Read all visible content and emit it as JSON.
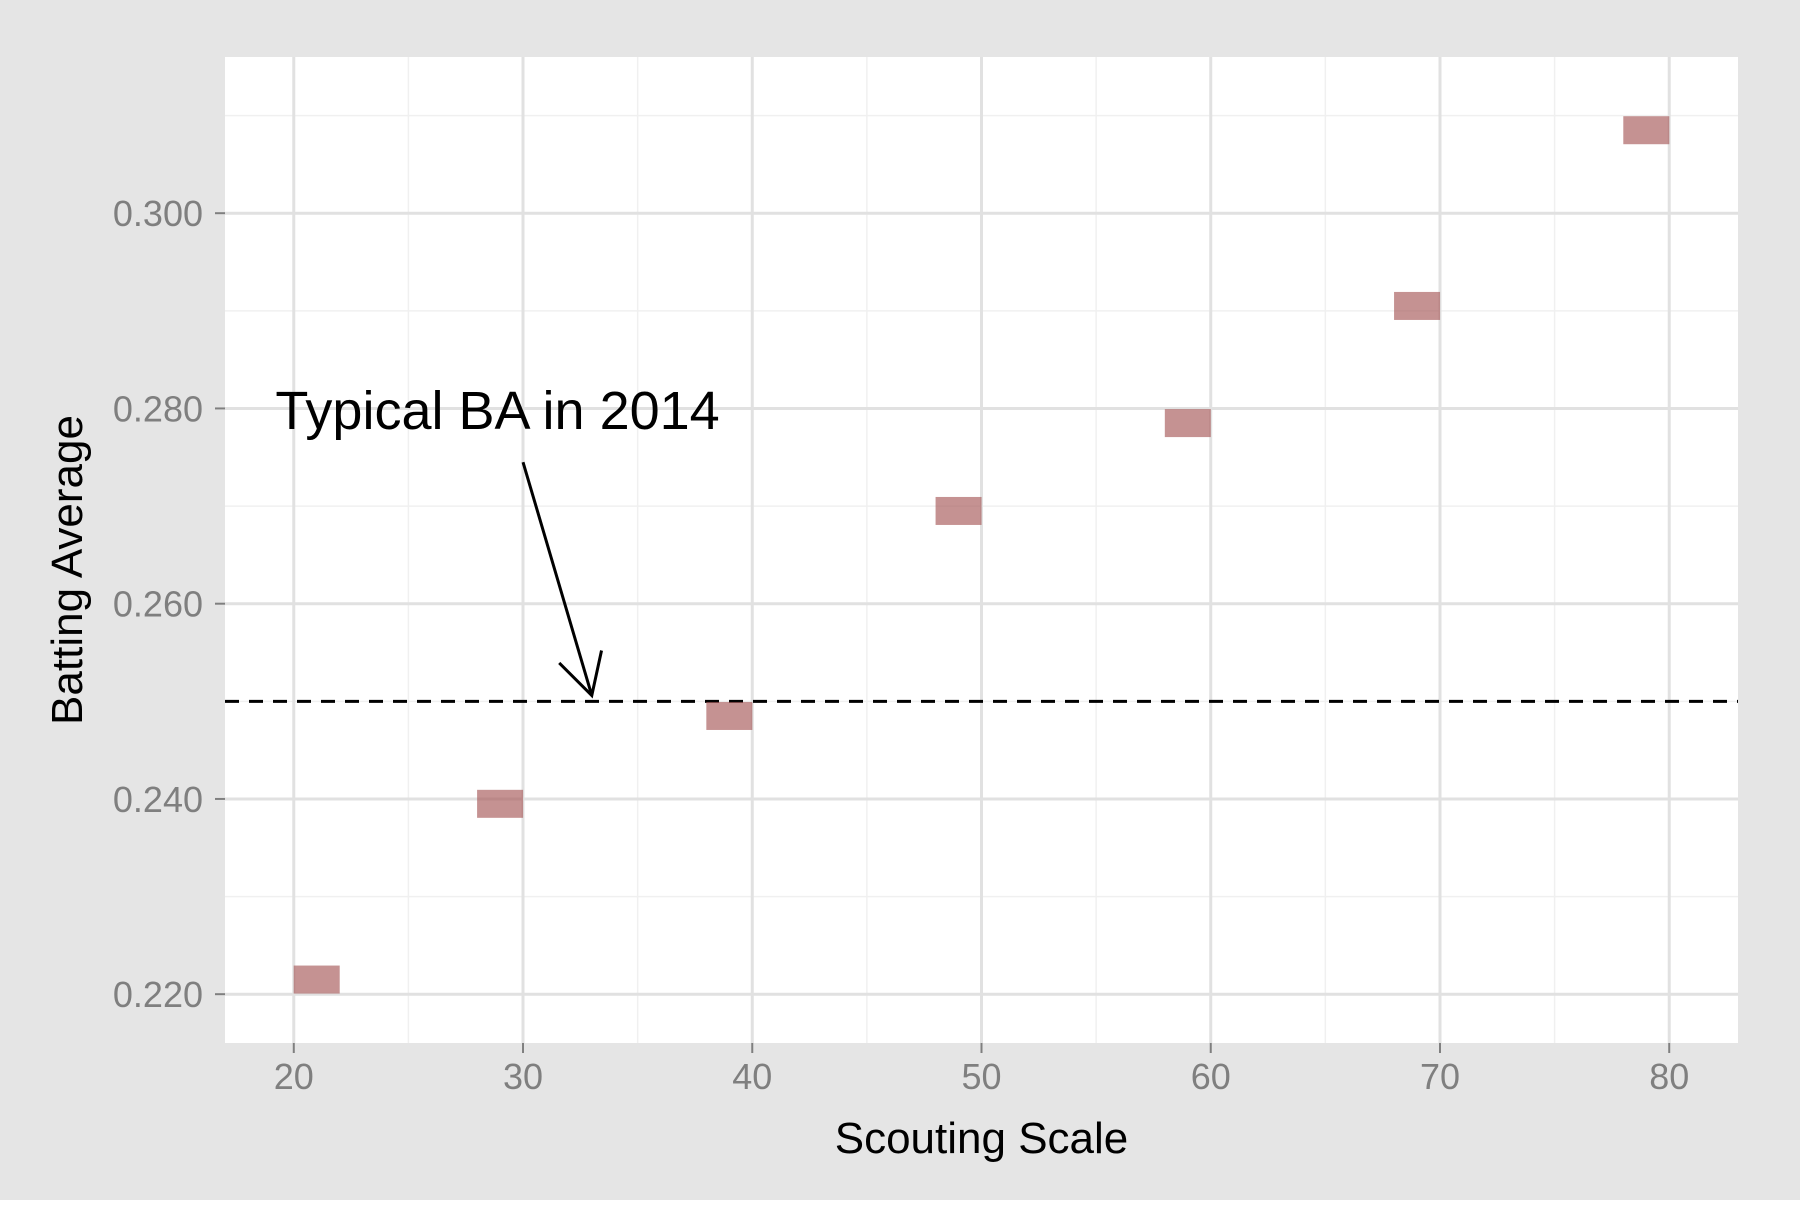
{
  "chart_data": {
    "type": "scatter",
    "title": "",
    "xlabel": "Scouting Scale",
    "ylabel": "Batting Average",
    "xlim": [
      17,
      83
    ],
    "ylim": [
      0.215,
      0.316
    ],
    "x_ticks": [
      20,
      30,
      40,
      50,
      60,
      70,
      80
    ],
    "x_tick_labels": [
      "20",
      "30",
      "40",
      "50",
      "60",
      "70",
      "80"
    ],
    "y_ticks": [
      0.22,
      0.24,
      0.26,
      0.28,
      0.3
    ],
    "y_tick_labels": [
      "0.220",
      "0.240",
      "0.260",
      "0.280",
      "0.300"
    ],
    "x_minor_ticks": [
      25,
      35,
      45,
      55,
      65,
      75
    ],
    "y_minor_ticks": [
      0.23,
      0.25,
      0.27,
      0.29,
      0.31
    ],
    "grid": true,
    "series": [
      {
        "x": [
          21,
          29,
          39,
          49,
          59,
          69,
          79
        ],
        "y": [
          0.2215,
          0.2395,
          0.2485,
          0.2695,
          0.2785,
          0.2905,
          0.3085
        ],
        "marker": "rectangle"
      }
    ],
    "reference_line": {
      "orientation": "horizontal",
      "y": 0.25,
      "style": "dashed",
      "color": "#000000"
    },
    "annotation": {
      "text": "Typical BA in 2014",
      "text_x": 19.2,
      "text_y": 0.2779,
      "arrow_from": [
        30,
        0.2745
      ],
      "arrow_to": [
        33,
        0.2506
      ]
    },
    "colors": {
      "outer_background": "#e5e5e5",
      "panel_background": "#ffffff",
      "major_grid": "#e1e1e1",
      "minor_grid": "#f0f0f0",
      "marker": "#a65858",
      "marker_opacity": 0.65
    }
  }
}
